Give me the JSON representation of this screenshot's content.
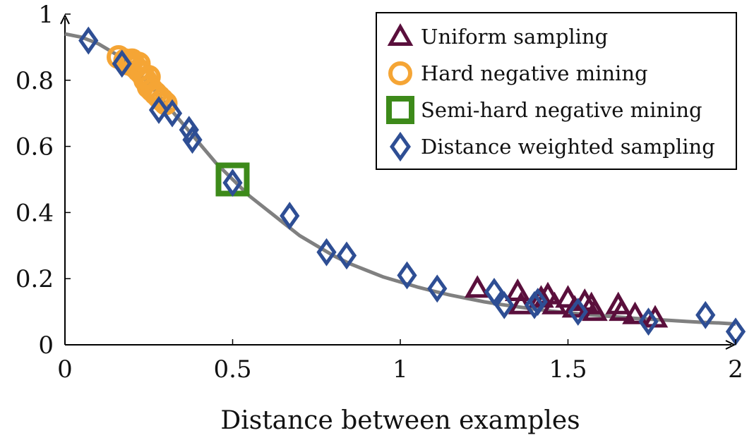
{
  "chart_data": {
    "type": "scatter",
    "title": "",
    "xlabel": "Distance between examples",
    "ylabel": "",
    "xlim": [
      0,
      2
    ],
    "ylim": [
      0,
      1
    ],
    "xticks": [
      "0",
      "0.5",
      "1",
      "1.5",
      "2"
    ],
    "yticks": [
      "0",
      "0.2",
      "0.4",
      "0.6",
      "0.8",
      "1"
    ],
    "grid": false,
    "legend_position": "top-right",
    "curve": {
      "color": "#808080",
      "x": [
        0,
        0.05,
        0.1,
        0.15,
        0.2,
        0.25,
        0.3,
        0.35,
        0.4,
        0.45,
        0.5,
        0.55,
        0.6,
        0.65,
        0.7,
        0.75,
        0.8,
        0.85,
        0.9,
        0.95,
        1.0,
        1.05,
        1.1,
        1.15,
        1.2,
        1.25,
        1.3,
        1.35,
        1.4,
        1.45,
        1.5,
        1.55,
        1.6,
        1.65,
        1.7,
        1.75,
        1.8,
        1.85,
        1.9,
        1.95,
        2.0
      ],
      "y": [
        0.94,
        0.93,
        0.91,
        0.88,
        0.84,
        0.79,
        0.73,
        0.67,
        0.61,
        0.55,
        0.5,
        0.45,
        0.41,
        0.37,
        0.33,
        0.3,
        0.27,
        0.245,
        0.225,
        0.205,
        0.19,
        0.175,
        0.162,
        0.15,
        0.14,
        0.13,
        0.122,
        0.115,
        0.108,
        0.102,
        0.097,
        0.092,
        0.088,
        0.084,
        0.08,
        0.077,
        0.074,
        0.071,
        0.068,
        0.066,
        0.063
      ]
    },
    "series": [
      {
        "name": "Uniform sampling",
        "marker": "triangle",
        "color": "#5a0f3c",
        "points": [
          [
            1.23,
            0.17
          ],
          [
            1.35,
            0.16
          ],
          [
            1.36,
            0.12
          ],
          [
            1.42,
            0.14
          ],
          [
            1.44,
            0.15
          ],
          [
            1.46,
            0.12
          ],
          [
            1.5,
            0.14
          ],
          [
            1.52,
            0.11
          ],
          [
            1.55,
            0.13
          ],
          [
            1.57,
            0.12
          ],
          [
            1.58,
            0.1
          ],
          [
            1.65,
            0.12
          ],
          [
            1.66,
            0.1
          ],
          [
            1.7,
            0.09
          ],
          [
            1.76,
            0.08
          ]
        ]
      },
      {
        "name": "Hard negative mining",
        "marker": "circle",
        "color": "#f5a535",
        "points": [
          [
            0.16,
            0.87
          ],
          [
            0.18,
            0.86
          ],
          [
            0.19,
            0.85
          ],
          [
            0.2,
            0.86
          ],
          [
            0.21,
            0.84
          ],
          [
            0.22,
            0.83
          ],
          [
            0.22,
            0.85
          ],
          [
            0.23,
            0.82
          ],
          [
            0.24,
            0.8
          ],
          [
            0.25,
            0.81
          ],
          [
            0.25,
            0.78
          ],
          [
            0.26,
            0.77
          ],
          [
            0.27,
            0.76
          ],
          [
            0.28,
            0.75
          ],
          [
            0.29,
            0.74
          ],
          [
            0.3,
            0.73
          ]
        ]
      },
      {
        "name": "Semi-hard negative mining",
        "marker": "square",
        "color": "#3d8a1a",
        "points": [
          [
            0.5,
            0.5
          ]
        ]
      },
      {
        "name": "Distance weighted sampling",
        "marker": "diamond",
        "color": "#2e4e94",
        "points": [
          [
            0.07,
            0.92
          ],
          [
            0.17,
            0.85
          ],
          [
            0.28,
            0.71
          ],
          [
            0.32,
            0.7
          ],
          [
            0.37,
            0.65
          ],
          [
            0.38,
            0.62
          ],
          [
            0.5,
            0.49
          ],
          [
            0.67,
            0.39
          ],
          [
            0.78,
            0.28
          ],
          [
            0.84,
            0.27
          ],
          [
            1.02,
            0.21
          ],
          [
            1.11,
            0.17
          ],
          [
            1.28,
            0.16
          ],
          [
            1.31,
            0.12
          ],
          [
            1.4,
            0.12
          ],
          [
            1.41,
            0.13
          ],
          [
            1.53,
            0.1
          ],
          [
            1.74,
            0.07
          ],
          [
            1.91,
            0.09
          ],
          [
            2.0,
            0.04
          ]
        ]
      }
    ]
  }
}
